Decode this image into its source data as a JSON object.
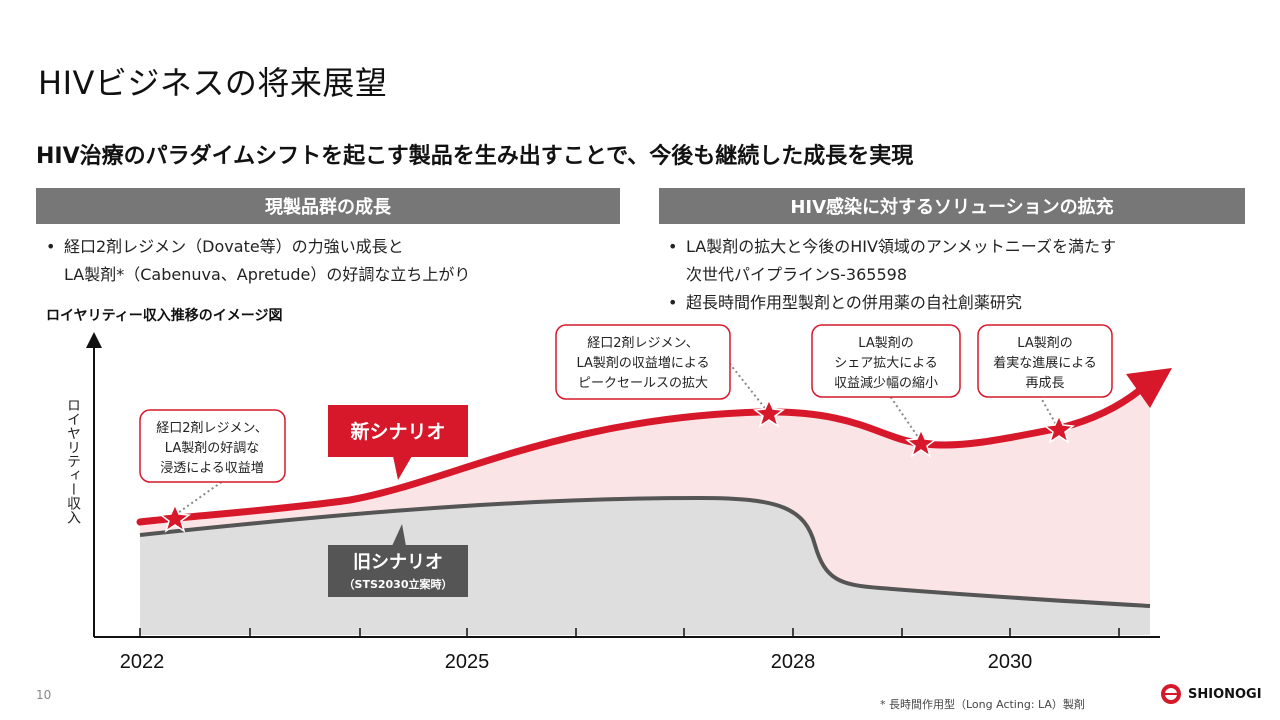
{
  "title": "HIVビジネスの将来展望",
  "subtitle": "HIV治療のパラダイムシフトを起こす製品を生み出すことで、今後も継続した成長を実現",
  "left_section": {
    "header": "現製品群の成長",
    "bullets": [
      [
        "経口2剤レジメン（Dovate等）の力強い成長と",
        "LA製剤*（Cabenuva、Apretude）の好調な立ち上がり"
      ]
    ]
  },
  "right_section": {
    "header": "HIV感染に対するソリューションの拡充",
    "bullets": [
      [
        "LA製剤の拡大と今後のHIV領域のアンメットニーズを満たす",
        "次世代パイプラインS-365598"
      ],
      [
        "超長時間作用型製剤との併用薬の自社創薬研究"
      ]
    ]
  },
  "chart_label": "ロイヤリティー収入推移のイメージ図",
  "chart_data": {
    "type": "area",
    "ylabel": "ロイヤリティー収入",
    "x_ticks": [
      "2022",
      "2025",
      "2028",
      "2030"
    ],
    "series": [
      {
        "name": "新シナリオ",
        "color": "#d7182a"
      },
      {
        "name": "旧シナリオ",
        "color": "#555555"
      }
    ],
    "series_notes": {
      "old": "（STS2030立案時）"
    },
    "annotations": [
      {
        "id": "a1",
        "lines": [
          "経口2剤レジメン、",
          "LA製剤の好調な",
          "浸透による収益増"
        ]
      },
      {
        "id": "a2",
        "lines": [
          "経口2剤レジメン、",
          "LA製剤の収益増による",
          "ピークセールスの拡大"
        ]
      },
      {
        "id": "a3",
        "lines": [
          "LA製剤の",
          "シェア拡大による",
          "収益減少幅の縮小"
        ]
      },
      {
        "id": "a4",
        "lines": [
          "LA製剤の",
          "着実な進展による",
          "再成長"
        ]
      }
    ]
  },
  "footnote": "* 長時間作用型（Long Acting: LA）製剤",
  "page_number": "10",
  "logo": {
    "text": "SHIONOGI",
    "color": "#d7182a"
  },
  "colors": {
    "accent": "#d7182a",
    "header_bg": "#777777",
    "old_area": "#dedede",
    "new_area": "#fbe4e6"
  }
}
